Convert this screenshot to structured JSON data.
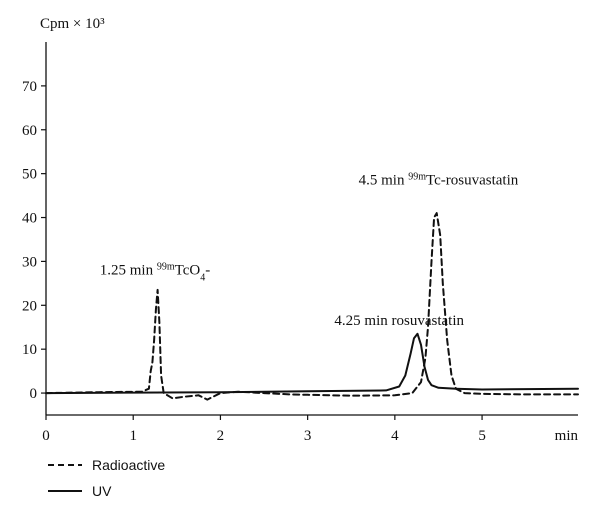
{
  "chart_data": {
    "type": "line",
    "ylabel": "Cpm × 10³",
    "xlabel": "min",
    "xlim": [
      0,
      6.1
    ],
    "ylim": [
      -5,
      80
    ],
    "xticks": [
      0,
      1,
      2,
      3,
      4,
      5
    ],
    "yticks": [
      0,
      10,
      20,
      30,
      40,
      50,
      60,
      70
    ],
    "legend_position": "bottom-left",
    "grid": false,
    "series": [
      {
        "name": "Radioactive",
        "style": "dashed",
        "x": [
          0,
          0.6,
          1.1,
          1.18,
          1.2,
          1.22,
          1.24,
          1.26,
          1.28,
          1.3,
          1.32,
          1.35,
          1.45,
          1.6,
          1.75,
          1.85,
          2.0,
          2.2,
          2.5,
          2.8,
          3.0,
          3.5,
          4.0,
          4.2,
          4.3,
          4.35,
          4.38,
          4.42,
          4.45,
          4.48,
          4.52,
          4.55,
          4.6,
          4.65,
          4.7,
          4.8,
          5.0,
          5.5,
          6.1
        ],
        "y": [
          0,
          0.2,
          0.3,
          1.0,
          5.0,
          7.0,
          12.0,
          19.0,
          23.5,
          16.0,
          4.0,
          0.0,
          -1.2,
          -0.8,
          -0.5,
          -1.5,
          0.0,
          0.3,
          0.0,
          -0.3,
          -0.4,
          -0.6,
          -0.5,
          0.0,
          2.5,
          8.0,
          15.0,
          30.0,
          40.0,
          41.0,
          36.0,
          25.0,
          12.0,
          4.0,
          1.0,
          0.0,
          -0.2,
          -0.3,
          -0.3
        ]
      },
      {
        "name": "UV",
        "style": "solid",
        "x": [
          0,
          1.0,
          2.0,
          3.0,
          3.9,
          4.05,
          4.12,
          4.18,
          4.22,
          4.26,
          4.3,
          4.34,
          4.38,
          4.42,
          4.5,
          4.7,
          5.0,
          6.1
        ],
        "y": [
          0,
          0.1,
          0.2,
          0.4,
          0.6,
          1.5,
          4.0,
          9.0,
          12.5,
          13.5,
          11.0,
          6.0,
          3.0,
          1.8,
          1.2,
          1.0,
          0.8,
          1.0
        ]
      }
    ],
    "annotations": [
      {
        "pre": "1.25 min ",
        "sup": "99m",
        "main": "TcO",
        "sub": "4",
        "post": "-",
        "x": 1.25,
        "y": 27
      },
      {
        "pre": "4.25 min rosuvastatin",
        "sup": "",
        "main": "",
        "sub": "",
        "post": "",
        "x": 4.05,
        "y": 15.5
      },
      {
        "pre": "4.5 min ",
        "sup": "99m",
        "main": "Tc-rosuvastatin",
        "sub": "",
        "post": "",
        "x": 4.5,
        "y": 47.5
      }
    ]
  }
}
